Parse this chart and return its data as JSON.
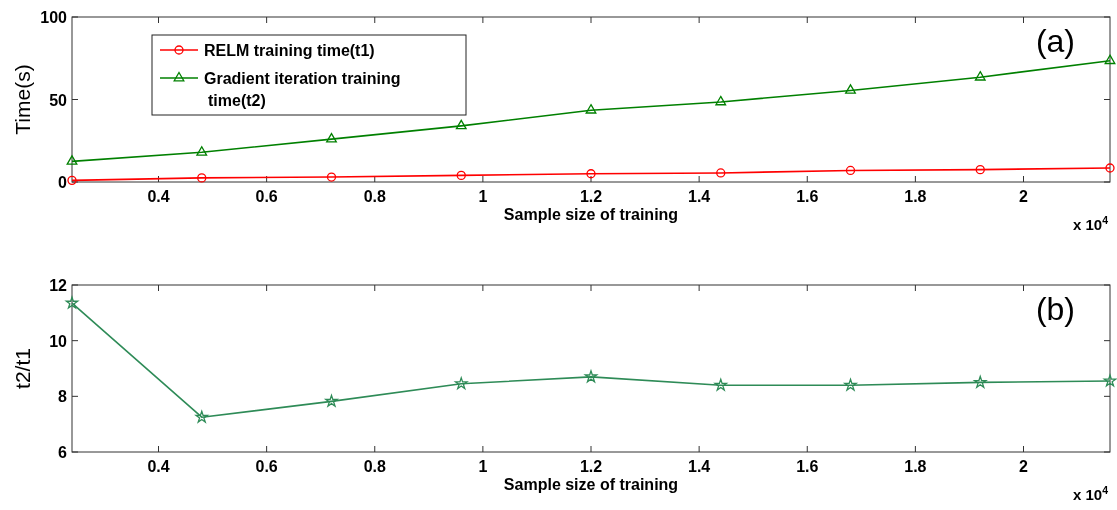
{
  "chart_data": [
    {
      "type": "line",
      "xlabel": "Sample size of  training",
      "ylabel": "Time(s)",
      "x": [
        0.24,
        0.48,
        0.72,
        0.96,
        1.2,
        1.44,
        1.68,
        1.92,
        2.16
      ],
      "xlim": [
        0.24,
        2.16
      ],
      "xticks": [
        0.4,
        0.6,
        0.8,
        1,
        1.2,
        1.4,
        1.6,
        1.8,
        2
      ],
      "ylim": [
        0,
        100
      ],
      "yticks": [
        0,
        50,
        100
      ],
      "legend": "top left",
      "annotations": [
        "(a)",
        "x 10$^{4}$"
      ],
      "series": [
        {
          "name": "RELM training time(t1)",
          "color": "#ff0000",
          "marker": "circle",
          "values": [
            1,
            2.5,
            3,
            4,
            5,
            5.5,
            7,
            7.5,
            8.5
          ]
        },
        {
          "name": "Gradient iteration training time(t2)",
          "color": "#008000",
          "marker": "triangle",
          "values": [
            12.5,
            18,
            26,
            34,
            43.5,
            48.5,
            55.5,
            63.5,
            73.5
          ]
        }
      ]
    },
    {
      "type": "line",
      "xlabel": "Sample size of  training",
      "ylabel": "t2/t1",
      "x": [
        0.24,
        0.48,
        0.72,
        0.96,
        1.2,
        1.44,
        1.68,
        1.92,
        2.16
      ],
      "xlim": [
        0.24,
        2.16
      ],
      "xticks": [
        0.4,
        0.6,
        0.8,
        1,
        1.2,
        1.4,
        1.6,
        1.8,
        2
      ],
      "ylim": [
        6,
        12
      ],
      "yticks": [
        6,
        8,
        10,
        12
      ],
      "annotations": [
        "(b)",
        "x 10$^{4}$"
      ],
      "series": [
        {
          "color": "#2e8b57",
          "marker": "star",
          "values": [
            11.35,
            7.25,
            7.82,
            8.45,
            8.7,
            8.4,
            8.4,
            8.5,
            8.55
          ]
        }
      ]
    }
  ]
}
